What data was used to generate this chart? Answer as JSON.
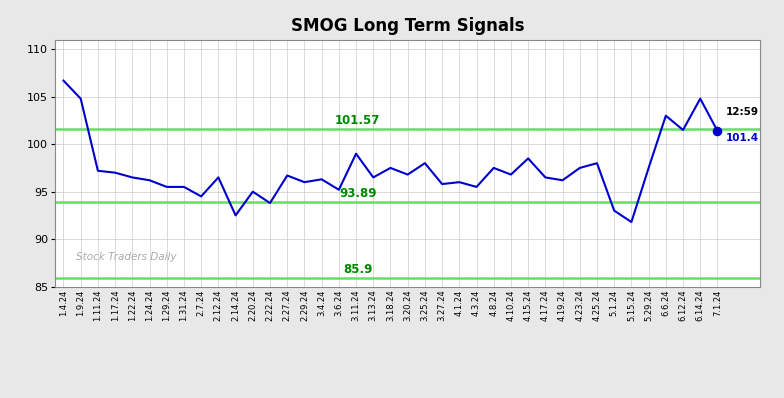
{
  "title": "SMOG Long Term Signals",
  "hlines": [
    {
      "y": 101.57,
      "label": "101.57",
      "color": "#66dd66"
    },
    {
      "y": 93.89,
      "label": "93.89",
      "color": "#66dd66"
    },
    {
      "y": 85.9,
      "label": "85.9",
      "color": "#66dd66"
    }
  ],
  "watermark": "Stock Traders Daily",
  "annotation_time": "12:59",
  "annotation_price": "101.4",
  "last_price": 101.4,
  "line_color": "#0000cc",
  "dot_color": "#0000cc",
  "ylim": [
    85,
    111
  ],
  "yticks": [
    85,
    90,
    95,
    100,
    105,
    110
  ],
  "background_color": "#e8e8e8",
  "plot_bg_color": "#ffffff",
  "x_labels": [
    "1.4.24",
    "1.9.24",
    "1.11.24",
    "1.17.24",
    "1.22.24",
    "1.24.24",
    "1.29.24",
    "1.31.24",
    "2.7.24",
    "2.12.24",
    "2.14.24",
    "2.20.24",
    "2.22.24",
    "2.27.24",
    "2.29.24",
    "3.4.24",
    "3.6.24",
    "3.11.24",
    "3.13.24",
    "3.18.24",
    "3.20.24",
    "3.25.24",
    "3.27.24",
    "4.1.24",
    "4.3.24",
    "4.8.24",
    "4.10.24",
    "4.15.24",
    "4.17.24",
    "4.19.24",
    "4.23.24",
    "4.25.24",
    "5.1.24",
    "5.15.24",
    "5.29.24",
    "6.6.24",
    "6.12.24",
    "6.14.24",
    "7.1.24"
  ],
  "y_values": [
    106.7,
    104.8,
    97.2,
    97.0,
    96.5,
    96.2,
    95.5,
    95.5,
    94.5,
    96.5,
    92.5,
    95.0,
    93.8,
    96.7,
    96.0,
    96.3,
    95.2,
    99.0,
    96.5,
    97.5,
    96.8,
    98.0,
    95.8,
    96.0,
    95.5,
    97.5,
    96.8,
    98.5,
    96.5,
    96.2,
    97.5,
    98.0,
    93.0,
    91.8,
    97.5,
    103.0,
    101.5,
    104.8,
    101.4
  ]
}
